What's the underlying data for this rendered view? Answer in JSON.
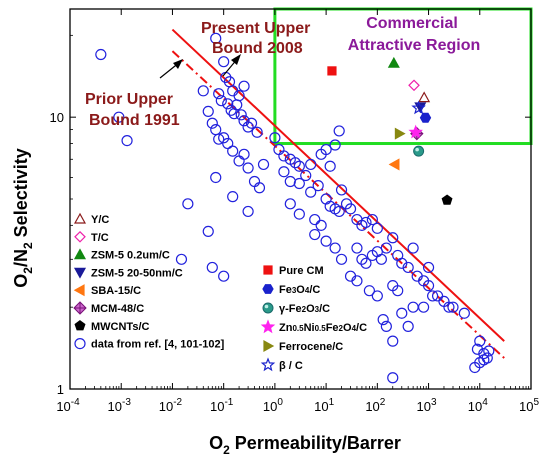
{
  "chart_data": {
    "type": "scatter",
    "xlabel": "O2 Permeability/Barrer",
    "ylabel": "O2/N2 Selectivity",
    "x_scale": "log",
    "y_scale": "log",
    "xlim": [
      0.0001,
      100000
    ],
    "ylim": [
      1,
      25
    ],
    "x_ticks": [
      {
        "value": 0.0001,
        "base": "10",
        "exp": "-4"
      },
      {
        "value": 0.001,
        "base": "10",
        "exp": "-3"
      },
      {
        "value": 0.01,
        "base": "10",
        "exp": "-2"
      },
      {
        "value": 0.1,
        "base": "10",
        "exp": "-1"
      },
      {
        "value": 1,
        "base": "10",
        "exp": "0"
      },
      {
        "value": 10,
        "base": "10",
        "exp": "1"
      },
      {
        "value": 100,
        "base": "10",
        "exp": "2"
      },
      {
        "value": 1000,
        "base": "10",
        "exp": "3"
      },
      {
        "value": 10000,
        "base": "10",
        "exp": "4"
      },
      {
        "value": 100000,
        "base": "10",
        "exp": "5"
      }
    ],
    "y_ticks": [
      {
        "value": 1,
        "label": "1"
      },
      {
        "value": 10,
        "label": "10"
      }
    ],
    "upper_bounds": [
      {
        "name": "Present Upper Bound 2008",
        "style": "solid",
        "color": "#ee1111",
        "points": [
          [
            0.01,
            21
          ],
          [
            30000,
            1.5
          ]
        ]
      },
      {
        "name": "Prior Upper Bound 1991",
        "style": "dashdot",
        "color": "#ee1111",
        "points": [
          [
            0.01,
            17.5
          ],
          [
            30000,
            1.3
          ]
        ]
      }
    ],
    "region": {
      "label_line1": "Commercial",
      "label_line2": "Attractive Region",
      "color": "#22dd22",
      "x_range": [
        1,
        100000
      ],
      "y_min": 8
    }
  },
  "annotations": {
    "present_line1": "Present Upper",
    "present_line2": "Bound 2008",
    "prior_line1": "Prior Upper",
    "prior_line2": "Bound 1991"
  },
  "legend": {
    "left": [
      {
        "label": "Y/C",
        "marker": "triangle-up",
        "fill": "none",
        "stroke": "#8b1a1a"
      },
      {
        "label": "T/C",
        "marker": "diamond",
        "fill": "none",
        "stroke": "#ee22aa"
      },
      {
        "label": "ZSM-5  0.2um/C",
        "marker": "triangle-up",
        "fill": "#118811",
        "stroke": "#118811"
      },
      {
        "label": "ZSM-5  20-50nm/C",
        "marker": "triangle-down",
        "fill": "#1a1a99",
        "stroke": "#1a1a99"
      },
      {
        "label": "SBA-15/C",
        "marker": "triangle-left",
        "fill": "#ff7711",
        "stroke": "#ff7711"
      },
      {
        "label": "MCM-48/C",
        "marker": "circle-cross",
        "fill": "#cc66cc",
        "stroke": "#771177"
      },
      {
        "label": "MWCNTs/C",
        "marker": "pentagon",
        "fill": "#000000",
        "stroke": "#000000"
      },
      {
        "label": "data from ref. [4, 101-102]",
        "marker": "circle",
        "fill": "none",
        "stroke": "#2222dd"
      }
    ],
    "right": [
      {
        "label": "Pure CM",
        "marker": "square",
        "fill": "#ee1111",
        "stroke": "#ee1111"
      },
      {
        "label": "Fe3O4/C",
        "label_parts": [
          [
            "Fe",
            0
          ],
          [
            "3",
            1
          ],
          [
            "O",
            0
          ],
          [
            "4",
            1
          ],
          [
            "/C",
            0
          ]
        ],
        "marker": "hexagon",
        "fill": "#1a22cc",
        "stroke": "#1a22cc"
      },
      {
        "label": "γ-Fe2O3/C",
        "label_parts": [
          [
            "γ-Fe",
            0
          ],
          [
            "2",
            1
          ],
          [
            "O",
            0
          ],
          [
            "3",
            1
          ],
          [
            "/C",
            0
          ]
        ],
        "marker": "sphere",
        "fill": "#2a9a8a",
        "stroke": "#1a6a6a"
      },
      {
        "label": "Zn0.5Ni0.5Fe2O4/C",
        "label_parts": [
          [
            "Zn",
            0
          ],
          [
            "0.5",
            1
          ],
          [
            "Ni",
            0
          ],
          [
            "0.5",
            1
          ],
          [
            "Fe",
            0
          ],
          [
            "2",
            1
          ],
          [
            "O",
            0
          ],
          [
            "4",
            1
          ],
          [
            "/C",
            0
          ]
        ],
        "marker": "star",
        "fill": "#ff22ee",
        "stroke": "#ff22ee"
      },
      {
        "label": "Ferrocene/C",
        "marker": "triangle-right",
        "fill": "#888811",
        "stroke": "#888811"
      },
      {
        "label": "β / C",
        "marker": "star",
        "fill": "none",
        "stroke": "#1a22cc"
      }
    ]
  },
  "series": [
    {
      "name": "Y/C",
      "marker": "triangle-up",
      "fill": "none",
      "stroke": "#8b1a1a",
      "points": [
        [
          820,
          11.8
        ]
      ]
    },
    {
      "name": "T/C",
      "marker": "diamond",
      "fill": "none",
      "stroke": "#ee22aa",
      "points": [
        [
          520,
          13.1
        ]
      ]
    },
    {
      "name": "ZSM-5  0.2um/C",
      "marker": "triangle-up",
      "fill": "#118811",
      "stroke": "#118811",
      "points": [
        [
          210,
          15.8
        ]
      ]
    },
    {
      "name": "ZSM-5  20-50nm/C",
      "marker": "triangle-down",
      "fill": "#1a1a99",
      "stroke": "#1a1a99",
      "points": [
        [
          690,
          10.9
        ]
      ]
    },
    {
      "name": "SBA-15/C",
      "marker": "triangle-left",
      "fill": "#ff7711",
      "stroke": "#ff7711",
      "points": [
        [
          220,
          6.7
        ]
      ]
    },
    {
      "name": "MCM-48/C",
      "marker": "circle-cross",
      "fill": "#cc66cc",
      "stroke": "#771177",
      "points": [
        [
          590,
          8.7
        ]
      ]
    },
    {
      "name": "MWCNTs/C",
      "marker": "pentagon",
      "fill": "#000000",
      "stroke": "#000000",
      "points": [
        [
          2300,
          4.95
        ]
      ]
    },
    {
      "name": "Pure CM",
      "marker": "square",
      "fill": "#ee1111",
      "stroke": "#ee1111",
      "points": [
        [
          13,
          14.8
        ]
      ]
    },
    {
      "name": "Fe3O4/C",
      "marker": "hexagon",
      "fill": "#1a22cc",
      "stroke": "#1a22cc",
      "points": [
        [
          870,
          9.95
        ]
      ]
    },
    {
      "name": "γ-Fe2O3/C",
      "marker": "sphere",
      "fill": "#2a9a8a",
      "stroke": "#1a6a6a",
      "points": [
        [
          640,
          7.5
        ]
      ]
    },
    {
      "name": "Zn0.5Ni0.5Fe2O4/C",
      "marker": "star",
      "fill": "#ff22ee",
      "stroke": "#ff22ee",
      "points": [
        [
          560,
          8.8
        ]
      ]
    },
    {
      "name": "Ferrocene/C",
      "marker": "triangle-right",
      "fill": "#888811",
      "stroke": "#888811",
      "points": [
        [
          270,
          8.7
        ]
      ]
    },
    {
      "name": "β / C",
      "marker": "star",
      "fill": "none",
      "stroke": "#1a22cc",
      "points": [
        [
          640,
          10.8
        ]
      ]
    },
    {
      "name": "data from ref. [4, 101-102]",
      "marker": "circle",
      "fill": "none",
      "stroke": "#2222dd",
      "points": [
        [
          0.0004,
          17
        ],
        [
          0.0009,
          10
        ],
        [
          0.0013,
          8.2
        ],
        [
          0.02,
          4.8
        ],
        [
          0.015,
          3.0
        ],
        [
          0.04,
          12.5
        ],
        [
          0.07,
          19.5
        ],
        [
          0.1,
          16
        ],
        [
          0.11,
          14
        ],
        [
          0.13,
          13.5
        ],
        [
          0.15,
          12.5
        ],
        [
          0.09,
          11.5
        ],
        [
          0.08,
          12.2
        ],
        [
          0.2,
          12
        ],
        [
          0.25,
          13
        ],
        [
          0.12,
          11.2
        ],
        [
          0.14,
          10.6
        ],
        [
          0.16,
          10.3
        ],
        [
          0.18,
          11.1
        ],
        [
          0.22,
          10.2
        ],
        [
          0.25,
          9.7
        ],
        [
          0.3,
          9.2
        ],
        [
          0.35,
          9.5
        ],
        [
          0.45,
          8.8
        ],
        [
          0.05,
          10.5
        ],
        [
          0.06,
          9.5
        ],
        [
          0.07,
          9.0
        ],
        [
          0.08,
          8.3
        ],
        [
          0.1,
          8.4
        ],
        [
          0.12,
          8.0
        ],
        [
          0.15,
          7.5
        ],
        [
          0.2,
          6.9
        ],
        [
          0.25,
          7.3
        ],
        [
          0.3,
          6.5
        ],
        [
          0.4,
          5.8
        ],
        [
          0.5,
          5.5
        ],
        [
          0.6,
          6.7
        ],
        [
          0.07,
          6.0
        ],
        [
          0.15,
          5.1
        ],
        [
          0.05,
          3.8
        ],
        [
          0.06,
          2.8
        ],
        [
          0.1,
          2.6
        ],
        [
          1,
          8.4
        ],
        [
          1.2,
          7.6
        ],
        [
          1.5,
          7.2
        ],
        [
          2,
          7.0
        ],
        [
          3,
          6.6
        ],
        [
          2.5,
          6.8
        ],
        [
          1.5,
          6.3
        ],
        [
          2,
          5.8
        ],
        [
          3,
          5.7
        ],
        [
          4,
          6.1
        ],
        [
          5,
          6.7
        ],
        [
          5,
          5.3
        ],
        [
          7,
          5.6
        ],
        [
          8,
          7.3
        ],
        [
          10,
          7.6
        ],
        [
          12,
          6.6
        ],
        [
          15,
          7.9
        ],
        [
          18,
          8.9
        ],
        [
          10,
          5.0
        ],
        [
          12,
          4.7
        ],
        [
          15,
          4.6
        ],
        [
          18,
          4.5
        ],
        [
          25,
          4.8
        ],
        [
          20,
          5.4
        ],
        [
          30,
          4.6
        ],
        [
          40,
          4.2
        ],
        [
          50,
          4.0
        ],
        [
          60,
          4.1
        ],
        [
          80,
          4.2
        ],
        [
          100,
          3.9
        ],
        [
          2,
          4.8
        ],
        [
          3,
          4.4
        ],
        [
          6,
          4.2
        ],
        [
          8,
          4.0
        ],
        [
          6,
          3.7
        ],
        [
          10,
          3.5
        ],
        [
          15,
          3.3
        ],
        [
          20,
          3.0
        ],
        [
          40,
          3.3
        ],
        [
          50,
          3.0
        ],
        [
          60,
          2.9
        ],
        [
          80,
          3.1
        ],
        [
          100,
          3.2
        ],
        [
          120,
          3.0
        ],
        [
          150,
          3.3
        ],
        [
          200,
          3.6
        ],
        [
          250,
          3.1
        ],
        [
          300,
          2.9
        ],
        [
          400,
          2.8
        ],
        [
          500,
          3.3
        ],
        [
          600,
          2.6
        ],
        [
          800,
          2.5
        ],
        [
          1000,
          2.4
        ],
        [
          1200,
          2.2
        ],
        [
          1500,
          2.2
        ],
        [
          2000,
          2.1
        ],
        [
          2500,
          2.0
        ],
        [
          3000,
          2.0
        ],
        [
          5000,
          1.9
        ],
        [
          200,
          2.4
        ],
        [
          500,
          2.0
        ],
        [
          800,
          2.0
        ],
        [
          300,
          1.9
        ],
        [
          400,
          1.7
        ],
        [
          200,
          1.5
        ],
        [
          150,
          1.7
        ],
        [
          130,
          1.8
        ],
        [
          100,
          2.2
        ],
        [
          10000,
          1.5
        ],
        [
          12000,
          1.35
        ],
        [
          14000,
          1.3
        ],
        [
          10000,
          1.25
        ],
        [
          12000,
          1.28
        ],
        [
          15000,
          1.38
        ],
        [
          9000,
          1.4
        ],
        [
          8000,
          1.2
        ],
        [
          200,
          1.1
        ],
        [
          1000,
          2.8
        ],
        [
          30,
          2.6
        ],
        [
          40,
          2.5
        ],
        [
          70,
          2.3
        ],
        [
          250,
          2.3
        ],
        [
          0.3,
          4.5
        ]
      ]
    }
  ]
}
